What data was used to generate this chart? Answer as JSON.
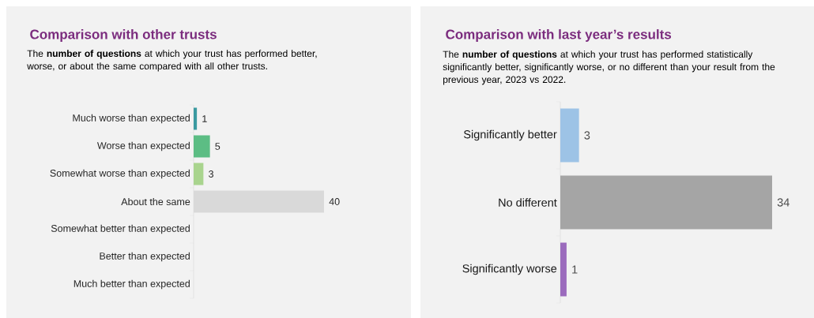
{
  "chart_data": [
    {
      "type": "bar",
      "orientation": "horizontal",
      "title": "Comparison with other trusts",
      "subtitle": "The **number of questions** at which your trust has performed better, worse, or about the same compared with all other trusts.",
      "categories": [
        "Much worse than expected",
        "Worse than expected",
        "Somewhat worse than expected",
        "About the same",
        "Somewhat better than expected",
        "Better than expected",
        "Much better than expected"
      ],
      "values": [
        1,
        5,
        3,
        40,
        0,
        0,
        0
      ],
      "colors": [
        "#3a9aa0",
        "#5cbd84",
        "#a9d48e",
        "#d9d9d9",
        "#d9d9d9",
        "#d9d9d9",
        "#d9d9d9"
      ],
      "value_labels": [
        "1",
        "5",
        "3",
        "40",
        null,
        null,
        null
      ]
    },
    {
      "type": "bar",
      "orientation": "horizontal",
      "title": "Comparison with last year’s results",
      "subtitle": "The **number of questions** at which your trust has performed statistically significantly better, significantly worse, or no different than your result from the previous year, 2023 vs 2022.",
      "categories": [
        "Significantly better",
        "No different",
        "Significantly worse"
      ],
      "values": [
        3,
        34,
        1
      ],
      "colors": [
        "#9dc3e6",
        "#a5a5a5",
        "#9b6bbd"
      ],
      "value_labels": [
        "3",
        "34",
        "1"
      ]
    }
  ]
}
